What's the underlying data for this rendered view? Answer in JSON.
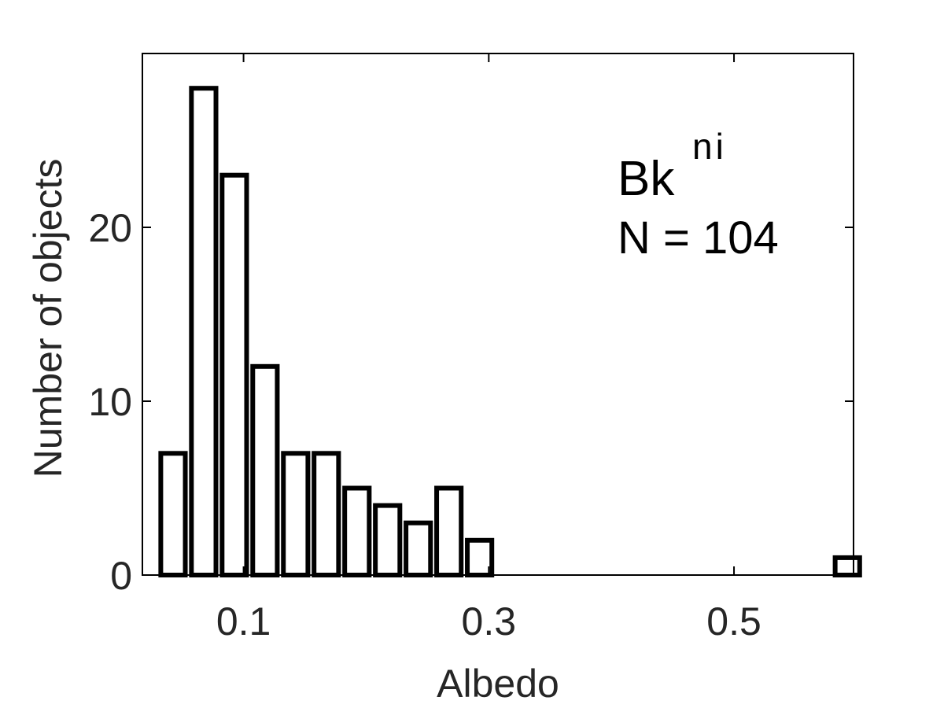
{
  "chart_data": {
    "type": "bar",
    "title": "",
    "xlabel": "Albedo",
    "ylabel": "Number of objects",
    "xlim": [
      0.0175,
      0.5975
    ],
    "ylim": [
      0,
      30
    ],
    "xticks": [
      0.1,
      0.3,
      0.5
    ],
    "xtick_labels": [
      "0.1",
      "0.3",
      "0.5"
    ],
    "yticks": [
      0,
      10,
      20
    ],
    "ytick_labels": [
      "0",
      "10",
      "20"
    ],
    "bin_width": 0.025,
    "bar_relative_width": 0.8,
    "bins": [
      {
        "center": 0.0425,
        "count": 7
      },
      {
        "center": 0.0675,
        "count": 28
      },
      {
        "center": 0.0925,
        "count": 23
      },
      {
        "center": 0.1175,
        "count": 12
      },
      {
        "center": 0.1425,
        "count": 7
      },
      {
        "center": 0.1675,
        "count": 7
      },
      {
        "center": 0.1925,
        "count": 5
      },
      {
        "center": 0.2175,
        "count": 4
      },
      {
        "center": 0.2425,
        "count": 3
      },
      {
        "center": 0.2675,
        "count": 5
      },
      {
        "center": 0.2925,
        "count": 2
      },
      {
        "center": 0.5925,
        "count": 1
      }
    ],
    "grid": false,
    "bar_fill": "#ffffff",
    "bar_edge": "#000000",
    "axis_color": "#000000",
    "text_color": "#262626",
    "annotation": {
      "label_main": "Bk",
      "label_sup": "ni",
      "count_text": "N = 104",
      "placement": "top-right"
    }
  }
}
